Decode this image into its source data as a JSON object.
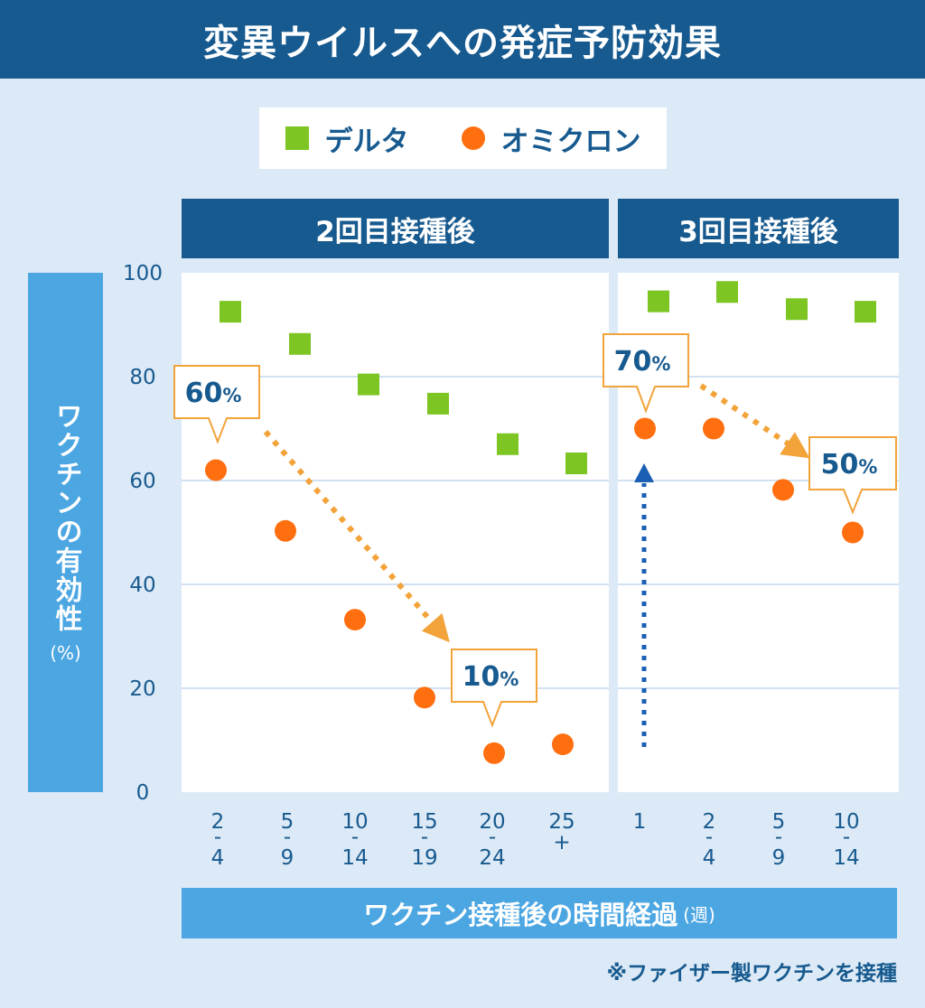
{
  "title": "変異ウイルスへの発症予防効果",
  "legend": {
    "delta_label": "デルタ",
    "omicron_label": "オミクロン"
  },
  "headers": {
    "second_dose": "2回目接種後",
    "third_dose": "3回目接種後"
  },
  "ylabel": "ワクチンの有効性",
  "ylabel_unit": "(%)",
  "xlabel": "ワクチン接種後の時間経過",
  "xlabel_unit": "(週)",
  "footnote": "※ファイザー製ワクチンを接種",
  "colors": {
    "header": "#175a8f",
    "label_box": "#4ba6e2",
    "delta": "#7cc522",
    "omicron": "#ff6f0f",
    "arrow_orange": "#f2a33a",
    "arrow_blue": "#1a5fb4",
    "text": "#175a8f"
  },
  "chart_data": {
    "type": "scatter",
    "ylim": [
      0,
      100
    ],
    "yticks": [
      "0",
      "20",
      "40",
      "60",
      "80",
      "100"
    ],
    "grid": true,
    "legend_position": "top",
    "panels": [
      {
        "header": "2回目接種後",
        "categories": [
          [
            "2",
            "-",
            "4"
          ],
          [
            "5",
            "-",
            "9"
          ],
          [
            "10",
            "-",
            "14"
          ],
          [
            "15",
            "-",
            "19"
          ],
          [
            "20",
            "-",
            "24"
          ],
          [
            "25",
            "+"
          ]
        ],
        "series": [
          {
            "name": "デルタ",
            "values": [
              92.5,
              86.3,
              78.5,
              74.8,
              67,
              63.3
            ]
          },
          {
            "name": "オミクロン",
            "values": [
              62,
              50.3,
              33.2,
              18.2,
              7.5,
              9.2
            ]
          }
        ],
        "callouts": [
          {
            "label": "60",
            "unit": "%"
          },
          {
            "label": "10",
            "unit": "%"
          }
        ]
      },
      {
        "header": "3回目接種後",
        "categories": [
          [
            "1"
          ],
          [
            "2",
            "-",
            "4"
          ],
          [
            "5",
            "-",
            "9"
          ],
          [
            "10",
            "-",
            "14"
          ]
        ],
        "series": [
          {
            "name": "デルタ",
            "values": [
              94.5,
              96.3,
              93,
              92.5
            ]
          },
          {
            "name": "オミクロン",
            "values": [
              70,
              70,
              58.2,
              50
            ]
          }
        ],
        "callouts": [
          {
            "label": "70",
            "unit": "%"
          },
          {
            "label": "50",
            "unit": "%"
          }
        ]
      }
    ]
  }
}
